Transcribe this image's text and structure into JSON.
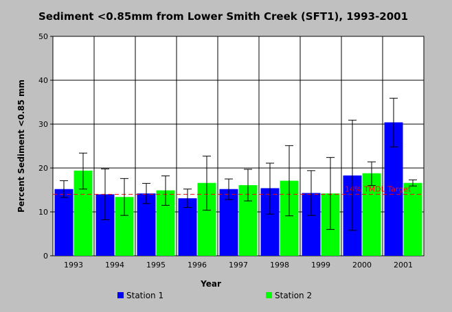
{
  "chart_data": {
    "type": "bar",
    "title": "Sediment <0.85mm from Lower Smith Creek (SFT1), 1993-2001",
    "xlabel": "Year",
    "ylabel": "Percent Sediment <0.85 mm",
    "ylim": [
      0,
      50
    ],
    "yticks": [
      0,
      10,
      20,
      30,
      40,
      50
    ],
    "grid": true,
    "legend": "bottom",
    "categories": [
      "1993",
      "1994",
      "1995",
      "1996",
      "1997",
      "1998",
      "1999",
      "2000",
      "2001"
    ],
    "series": [
      {
        "name": "Station 1",
        "color": "#0000ff",
        "values": [
          15.2,
          14.0,
          14.2,
          13.1,
          15.2,
          15.4,
          14.3,
          18.3,
          30.4
        ],
        "error_low": [
          13.3,
          8.2,
          11.9,
          11.0,
          12.8,
          9.5,
          9.2,
          5.8,
          24.8
        ],
        "error_high": [
          17.1,
          19.8,
          16.5,
          15.2,
          17.5,
          21.1,
          19.4,
          30.9,
          35.9
        ]
      },
      {
        "name": "Station 2",
        "color": "#00ff00",
        "values": [
          19.4,
          13.4,
          14.9,
          16.6,
          16.1,
          17.1,
          14.2,
          18.8,
          16.6
        ],
        "error_low": [
          15.2,
          9.2,
          11.5,
          10.4,
          12.5,
          9.1,
          6.0,
          16.0,
          15.9
        ],
        "error_high": [
          23.4,
          17.6,
          18.2,
          22.7,
          19.7,
          25.1,
          22.4,
          21.4,
          17.3
        ]
      }
    ],
    "target": {
      "value": 14,
      "label": "14% TMDL Target",
      "color": "#ff0000"
    }
  }
}
